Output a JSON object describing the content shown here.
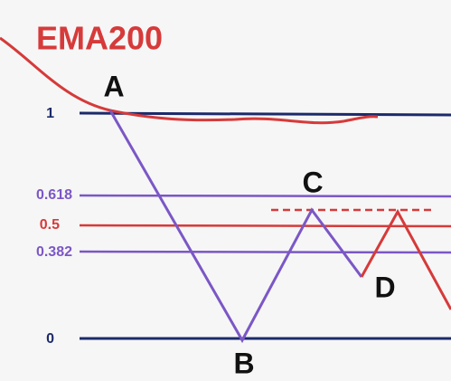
{
  "title": "EMA200",
  "levels": [
    {
      "label": "1"
    },
    {
      "label": "0.618"
    },
    {
      "label": "0.5"
    },
    {
      "label": "0.382"
    },
    {
      "label": "0"
    }
  ],
  "points": [
    {
      "label": "A"
    },
    {
      "label": "B"
    },
    {
      "label": "C"
    },
    {
      "label": "D"
    }
  ]
}
